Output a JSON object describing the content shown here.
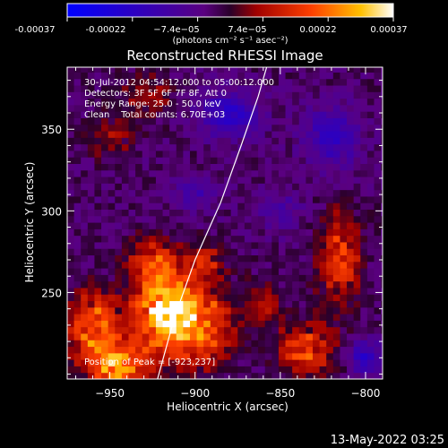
{
  "chart_data": {
    "type": "heatmap",
    "title": "Reconstructed RHESSI Image",
    "xlabel": "Heliocentric X (arcsec)",
    "ylabel": "Heliocentric Y (arcsec)",
    "xlim": [
      -975,
      -790
    ],
    "ylim": [
      197,
      388
    ],
    "x_ticks": [
      -950,
      -900,
      -850,
      -800
    ],
    "y_ticks": [
      250,
      300,
      350
    ],
    "x_tick_labels": [
      "−950",
      "−900",
      "−850",
      "−800"
    ],
    "y_tick_labels": [
      "250",
      "300",
      "350"
    ],
    "y_minor_ticks": [
      200,
      210,
      220,
      230,
      240,
      260,
      270,
      280,
      290,
      310,
      320,
      330,
      340,
      360,
      370,
      380
    ],
    "x_minor_ticks": [
      -970,
      -960,
      -940,
      -930,
      -920,
      -910,
      -890,
      -880,
      -870,
      -860,
      -840,
      -830,
      -820,
      -810
    ],
    "colorbar": {
      "min": -0.00037,
      "max": 0.00037,
      "tick_labels": [
        "-0.00037",
        "-0.00022",
        "−7.4e−05",
        "7.4e−05",
        "0.00022",
        "0.00037"
      ],
      "units_label": "(photons cm⁻² s⁻¹ asec⁻²)"
    },
    "annotations": [
      "30-Jul-2012 04:54:12.000 to 05:00:12.000",
      "Detectors: 3F 5F 6F 7F 8F, Att 0",
      "Energy Range: 25.0 - 50.0 keV",
      "Clean    Total counts: 6.70E+03"
    ],
    "peak_label": "Position of Peak = [-923,237]",
    "peak": {
      "x": -923,
      "y": 237
    },
    "limb_curve": [
      {
        "x": -922,
        "y": 197
      },
      {
        "x": -912,
        "y": 235
      },
      {
        "x": -900,
        "y": 270
      },
      {
        "x": -885,
        "y": 305
      },
      {
        "x": -873,
        "y": 340
      },
      {
        "x": -863,
        "y": 370
      },
      {
        "x": -858,
        "y": 388
      }
    ],
    "bright_regions": [
      {
        "x": -945,
        "y": 205,
        "sx": 18,
        "sy": 18,
        "v": 0.0003
      },
      {
        "x": -920,
        "y": 240,
        "sx": 16,
        "sy": 22,
        "v": 0.00035
      },
      {
        "x": -900,
        "y": 232,
        "sx": 20,
        "sy": 26,
        "v": 0.0003
      },
      {
        "x": -960,
        "y": 230,
        "sx": 15,
        "sy": 20,
        "v": 0.00026
      },
      {
        "x": -925,
        "y": 270,
        "sx": 14,
        "sy": 14,
        "v": 0.0002
      },
      {
        "x": -895,
        "y": 270,
        "sx": 10,
        "sy": 10,
        "v": 0.00016
      },
      {
        "x": -815,
        "y": 270,
        "sx": 12,
        "sy": 26,
        "v": 0.00022
      },
      {
        "x": -835,
        "y": 215,
        "sx": 16,
        "sy": 16,
        "v": 0.00022
      },
      {
        "x": -860,
        "y": 245,
        "sx": 10,
        "sy": 12,
        "v": 0.00014
      },
      {
        "x": -930,
        "y": 370,
        "sx": 14,
        "sy": 14,
        "v": 0.00012
      },
      {
        "x": -950,
        "y": 345,
        "sx": 12,
        "sy": 12,
        "v": 0.00012
      }
    ],
    "dark_regions": [
      {
        "x": -880,
        "y": 360,
        "sx": 18,
        "sy": 14,
        "v": -0.00018
      },
      {
        "x": -820,
        "y": 345,
        "sx": 16,
        "sy": 18,
        "v": -0.00016
      },
      {
        "x": -900,
        "y": 310,
        "sx": 14,
        "sy": 10,
        "v": -0.0001
      },
      {
        "x": -800,
        "y": 210,
        "sx": 10,
        "sy": 10,
        "v": -0.00018
      },
      {
        "x": -850,
        "y": 300,
        "sx": 12,
        "sy": 12,
        "v": -0.0001
      }
    ]
  },
  "footer": {
    "timestamp": "13-May-2022 03:25"
  }
}
